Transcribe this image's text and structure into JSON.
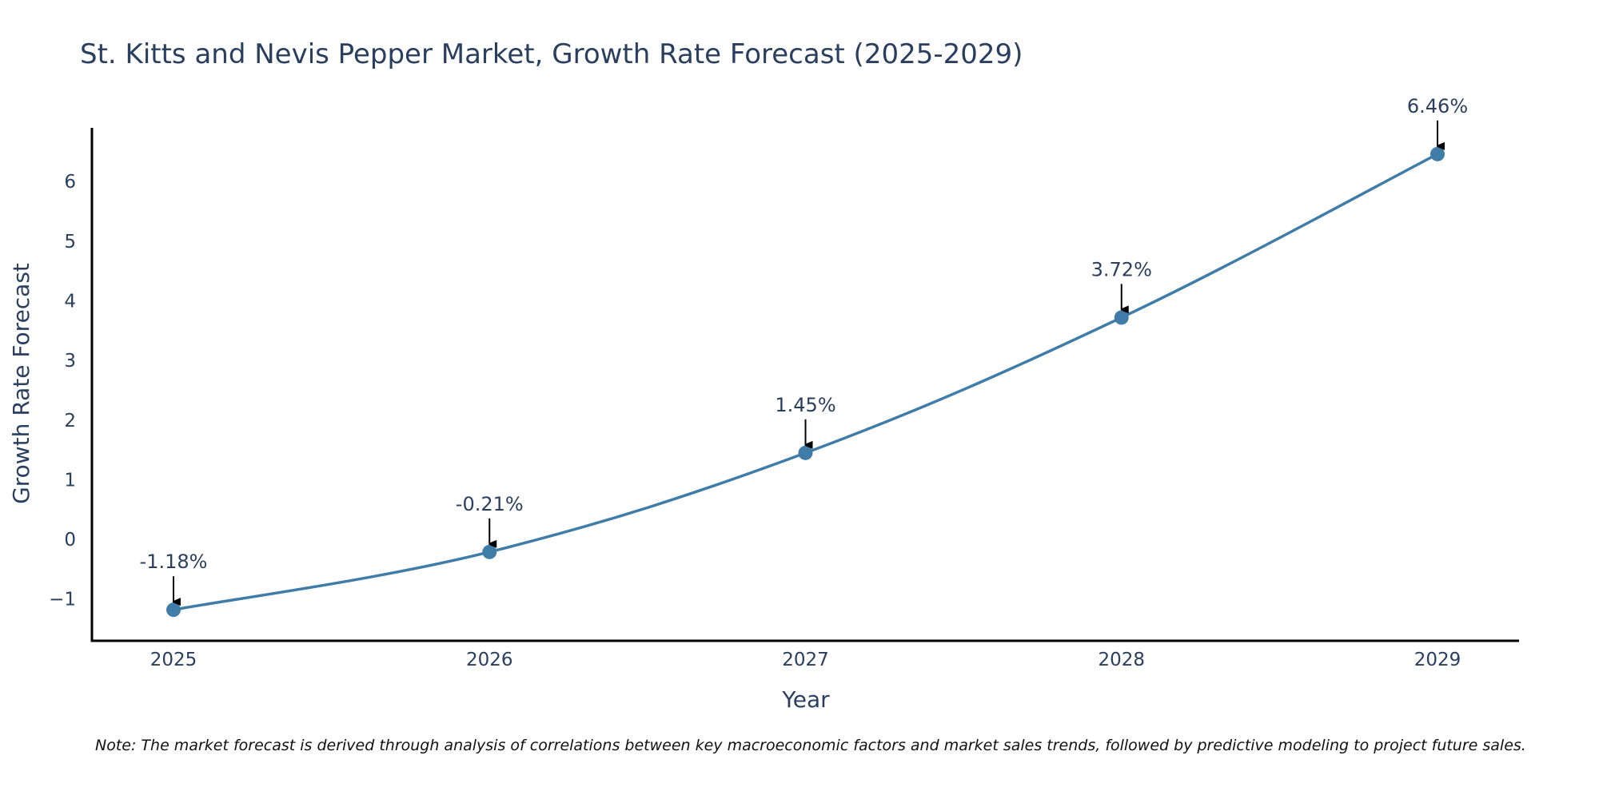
{
  "chart_data": {
    "type": "line",
    "title": "St. Kitts and Nevis Pepper Market, Growth Rate Forecast (2025-2029)",
    "xlabel": "Year",
    "ylabel": "Growth Rate Forecast",
    "categories": [
      "2025",
      "2026",
      "2027",
      "2028",
      "2029"
    ],
    "series": [
      {
        "name": "Growth Rate Forecast",
        "values": [
          -1.18,
          -0.21,
          1.45,
          3.72,
          6.46
        ],
        "labels": [
          "-1.18%",
          "-0.21%",
          "1.45%",
          "3.72%",
          "6.46%"
        ]
      }
    ],
    "ylim": [
      -1.7,
      6.9
    ],
    "yticks": [
      -1,
      0,
      1,
      2,
      3,
      4,
      5,
      6
    ],
    "ytick_labels": [
      "−1",
      "0",
      "1",
      "2",
      "3",
      "4",
      "5",
      "6"
    ],
    "grid": false,
    "line_color": "#3f7ca8",
    "marker_color": "#3f7ca8",
    "note": "Note: The market forecast is derived through analysis of correlations between key macroeconomic factors and market sales trends, followed by predictive modeling to project future sales."
  }
}
